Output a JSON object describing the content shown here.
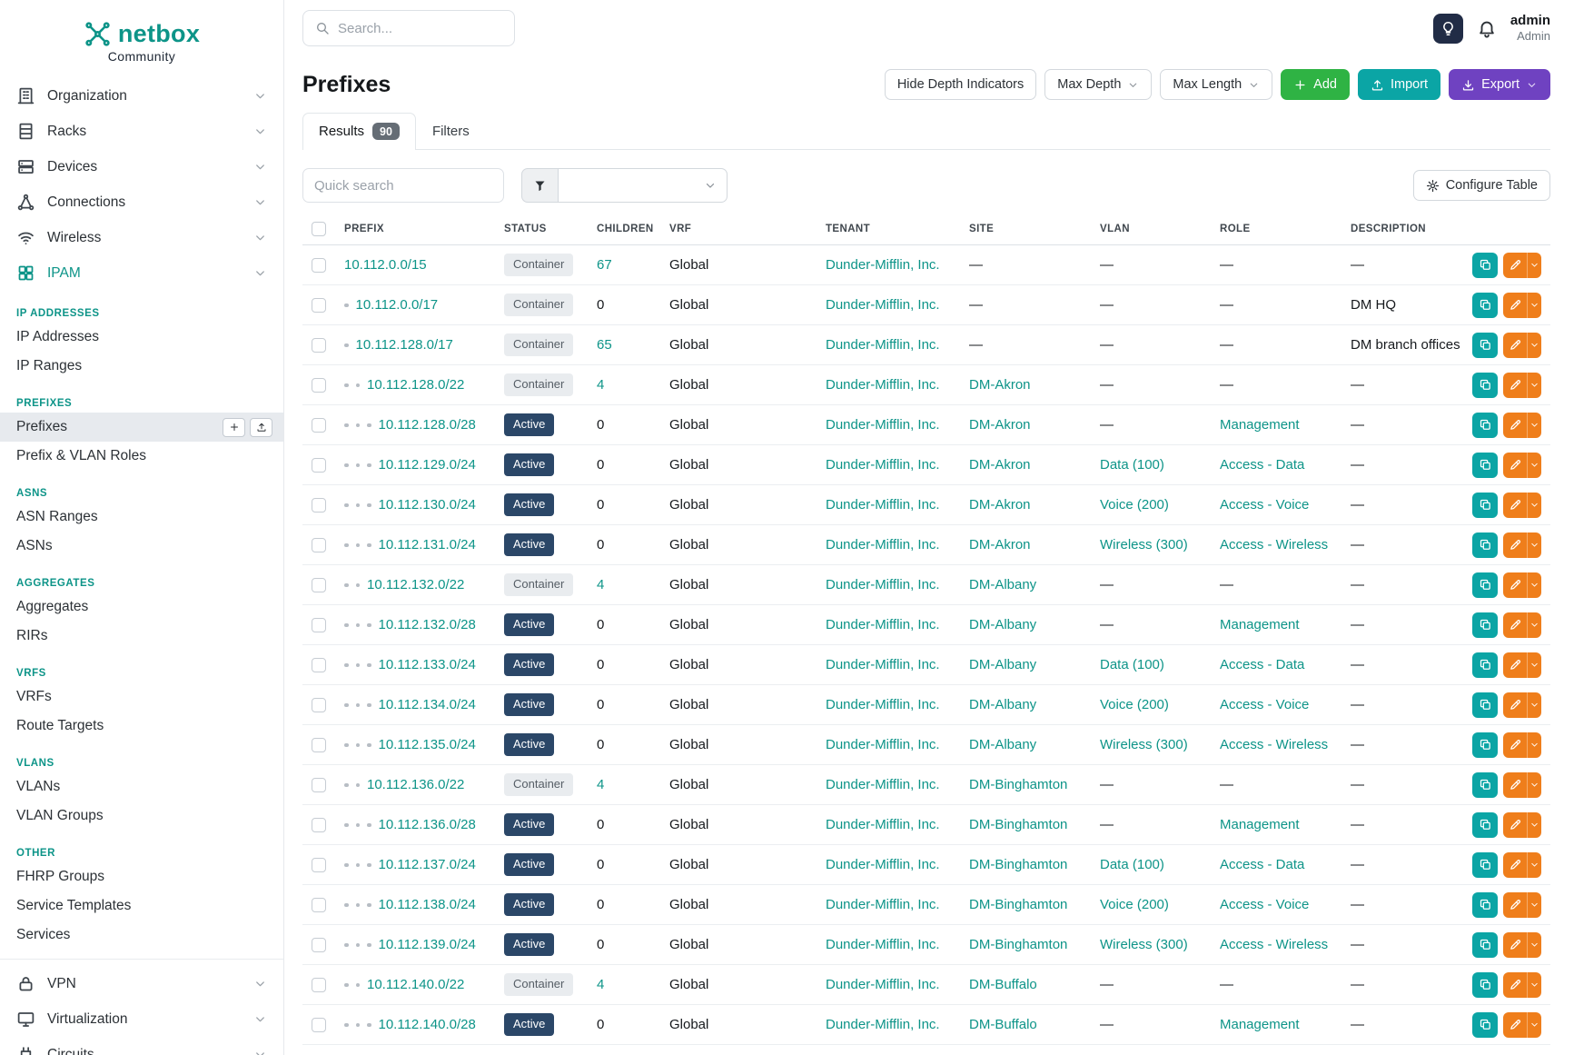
{
  "brand": {
    "name": "netbox",
    "subtitle": "Community"
  },
  "topbar": {
    "search_placeholder": "Search...",
    "user": {
      "name": "admin",
      "role": "Admin"
    }
  },
  "sidebar": {
    "top_menu": [
      {
        "label": "Organization",
        "icon": "building-icon"
      },
      {
        "label": "Racks",
        "icon": "rack-icon"
      },
      {
        "label": "Devices",
        "icon": "devices-icon"
      },
      {
        "label": "Connections",
        "icon": "connections-icon"
      },
      {
        "label": "Wireless",
        "icon": "wireless-icon"
      },
      {
        "label": "IPAM",
        "icon": "ipam-icon",
        "active": true
      }
    ],
    "ipam_sections": [
      {
        "header": "IP ADDRESSES",
        "items": [
          {
            "label": "IP Addresses"
          },
          {
            "label": "IP Ranges"
          }
        ]
      },
      {
        "header": "PREFIXES",
        "items": [
          {
            "label": "Prefixes",
            "active": true
          },
          {
            "label": "Prefix & VLAN Roles"
          }
        ]
      },
      {
        "header": "ASNS",
        "items": [
          {
            "label": "ASN Ranges"
          },
          {
            "label": "ASNs"
          }
        ]
      },
      {
        "header": "AGGREGATES",
        "items": [
          {
            "label": "Aggregates"
          },
          {
            "label": "RIRs"
          }
        ]
      },
      {
        "header": "VRFS",
        "items": [
          {
            "label": "VRFs"
          },
          {
            "label": "Route Targets"
          }
        ]
      },
      {
        "header": "VLANS",
        "items": [
          {
            "label": "VLANs"
          },
          {
            "label": "VLAN Groups"
          }
        ]
      },
      {
        "header": "OTHER",
        "items": [
          {
            "label": "FHRP Groups"
          },
          {
            "label": "Service Templates"
          },
          {
            "label": "Services"
          }
        ]
      }
    ],
    "bottom_menu": [
      {
        "label": "VPN",
        "icon": "vpn-icon"
      },
      {
        "label": "Virtualization",
        "icon": "virtualization-icon"
      },
      {
        "label": "Circuits",
        "icon": "circuits-icon"
      }
    ]
  },
  "page": {
    "title": "Prefixes",
    "toolbar": {
      "hide_depth_label": "Hide Depth Indicators",
      "max_depth_label": "Max Depth",
      "max_length_label": "Max Length",
      "add_label": "Add",
      "import_label": "Import",
      "export_label": "Export"
    },
    "tabs": [
      {
        "label": "Results",
        "badge": "90",
        "active": true
      },
      {
        "label": "Filters",
        "active": false
      }
    ],
    "quick_search_placeholder": "Quick search",
    "configure_table_label": "Configure Table"
  },
  "table": {
    "columns": [
      "PREFIX",
      "STATUS",
      "CHILDREN",
      "VRF",
      "TENANT",
      "SITE",
      "VLAN",
      "ROLE",
      "DESCRIPTION"
    ],
    "rows": [
      {
        "depth": 0,
        "prefix": "10.112.0.0/15",
        "status": "Container",
        "children": "67",
        "vrf": "Global",
        "tenant": "Dunder-Mifflin, Inc.",
        "site": "—",
        "vlan": "—",
        "role": "—",
        "description": "—"
      },
      {
        "depth": 1,
        "prefix": "10.112.0.0/17",
        "status": "Container",
        "children": "0",
        "vrf": "Global",
        "tenant": "Dunder-Mifflin, Inc.",
        "site": "—",
        "vlan": "—",
        "role": "—",
        "description": "DM HQ"
      },
      {
        "depth": 1,
        "prefix": "10.112.128.0/17",
        "status": "Container",
        "children": "65",
        "vrf": "Global",
        "tenant": "Dunder-Mifflin, Inc.",
        "site": "—",
        "vlan": "—",
        "role": "—",
        "description": "DM branch offices"
      },
      {
        "depth": 2,
        "prefix": "10.112.128.0/22",
        "status": "Container",
        "children": "4",
        "vrf": "Global",
        "tenant": "Dunder-Mifflin, Inc.",
        "site": "DM-Akron",
        "vlan": "—",
        "role": "—",
        "description": "—"
      },
      {
        "depth": 3,
        "prefix": "10.112.128.0/28",
        "status": "Active",
        "children": "0",
        "vrf": "Global",
        "tenant": "Dunder-Mifflin, Inc.",
        "site": "DM-Akron",
        "vlan": "—",
        "role": "Management",
        "description": "—"
      },
      {
        "depth": 3,
        "prefix": "10.112.129.0/24",
        "status": "Active",
        "children": "0",
        "vrf": "Global",
        "tenant": "Dunder-Mifflin, Inc.",
        "site": "DM-Akron",
        "vlan": "Data (100)",
        "role": "Access - Data",
        "description": "—"
      },
      {
        "depth": 3,
        "prefix": "10.112.130.0/24",
        "status": "Active",
        "children": "0",
        "vrf": "Global",
        "tenant": "Dunder-Mifflin, Inc.",
        "site": "DM-Akron",
        "vlan": "Voice (200)",
        "role": "Access - Voice",
        "description": "—"
      },
      {
        "depth": 3,
        "prefix": "10.112.131.0/24",
        "status": "Active",
        "children": "0",
        "vrf": "Global",
        "tenant": "Dunder-Mifflin, Inc.",
        "site": "DM-Akron",
        "vlan": "Wireless (300)",
        "role": "Access - Wireless",
        "description": "—"
      },
      {
        "depth": 2,
        "prefix": "10.112.132.0/22",
        "status": "Container",
        "children": "4",
        "vrf": "Global",
        "tenant": "Dunder-Mifflin, Inc.",
        "site": "DM-Albany",
        "vlan": "—",
        "role": "—",
        "description": "—"
      },
      {
        "depth": 3,
        "prefix": "10.112.132.0/28",
        "status": "Active",
        "children": "0",
        "vrf": "Global",
        "tenant": "Dunder-Mifflin, Inc.",
        "site": "DM-Albany",
        "vlan": "—",
        "role": "Management",
        "description": "—"
      },
      {
        "depth": 3,
        "prefix": "10.112.133.0/24",
        "status": "Active",
        "children": "0",
        "vrf": "Global",
        "tenant": "Dunder-Mifflin, Inc.",
        "site": "DM-Albany",
        "vlan": "Data (100)",
        "role": "Access - Data",
        "description": "—"
      },
      {
        "depth": 3,
        "prefix": "10.112.134.0/24",
        "status": "Active",
        "children": "0",
        "vrf": "Global",
        "tenant": "Dunder-Mifflin, Inc.",
        "site": "DM-Albany",
        "vlan": "Voice (200)",
        "role": "Access - Voice",
        "description": "—"
      },
      {
        "depth": 3,
        "prefix": "10.112.135.0/24",
        "status": "Active",
        "children": "0",
        "vrf": "Global",
        "tenant": "Dunder-Mifflin, Inc.",
        "site": "DM-Albany",
        "vlan": "Wireless (300)",
        "role": "Access - Wireless",
        "description": "—"
      },
      {
        "depth": 2,
        "prefix": "10.112.136.0/22",
        "status": "Container",
        "children": "4",
        "vrf": "Global",
        "tenant": "Dunder-Mifflin, Inc.",
        "site": "DM-Binghamton",
        "vlan": "—",
        "role": "—",
        "description": "—"
      },
      {
        "depth": 3,
        "prefix": "10.112.136.0/28",
        "status": "Active",
        "children": "0",
        "vrf": "Global",
        "tenant": "Dunder-Mifflin, Inc.",
        "site": "DM-Binghamton",
        "vlan": "—",
        "role": "Management",
        "description": "—"
      },
      {
        "depth": 3,
        "prefix": "10.112.137.0/24",
        "status": "Active",
        "children": "0",
        "vrf": "Global",
        "tenant": "Dunder-Mifflin, Inc.",
        "site": "DM-Binghamton",
        "vlan": "Data (100)",
        "role": "Access - Data",
        "description": "—"
      },
      {
        "depth": 3,
        "prefix": "10.112.138.0/24",
        "status": "Active",
        "children": "0",
        "vrf": "Global",
        "tenant": "Dunder-Mifflin, Inc.",
        "site": "DM-Binghamton",
        "vlan": "Voice (200)",
        "role": "Access - Voice",
        "description": "—"
      },
      {
        "depth": 3,
        "prefix": "10.112.139.0/24",
        "status": "Active",
        "children": "0",
        "vrf": "Global",
        "tenant": "Dunder-Mifflin, Inc.",
        "site": "DM-Binghamton",
        "vlan": "Wireless (300)",
        "role": "Access - Wireless",
        "description": "—"
      },
      {
        "depth": 2,
        "prefix": "10.112.140.0/22",
        "status": "Container",
        "children": "4",
        "vrf": "Global",
        "tenant": "Dunder-Mifflin, Inc.",
        "site": "DM-Buffalo",
        "vlan": "—",
        "role": "—",
        "description": "—"
      },
      {
        "depth": 3,
        "prefix": "10.112.140.0/28",
        "status": "Active",
        "children": "0",
        "vrf": "Global",
        "tenant": "Dunder-Mifflin, Inc.",
        "site": "DM-Buffalo",
        "vlan": "—",
        "role": "Management",
        "description": "—"
      }
    ]
  },
  "colors": {
    "brand-teal": "#0d9488",
    "link-teal": "#0d9488",
    "green": "#2fb344",
    "teal-btn": "#0ba5a5",
    "purple": "#6f42c1",
    "orange": "#ef7e1b",
    "badge-active-bg": "#2b4768",
    "dark-navy": "#212c46"
  }
}
